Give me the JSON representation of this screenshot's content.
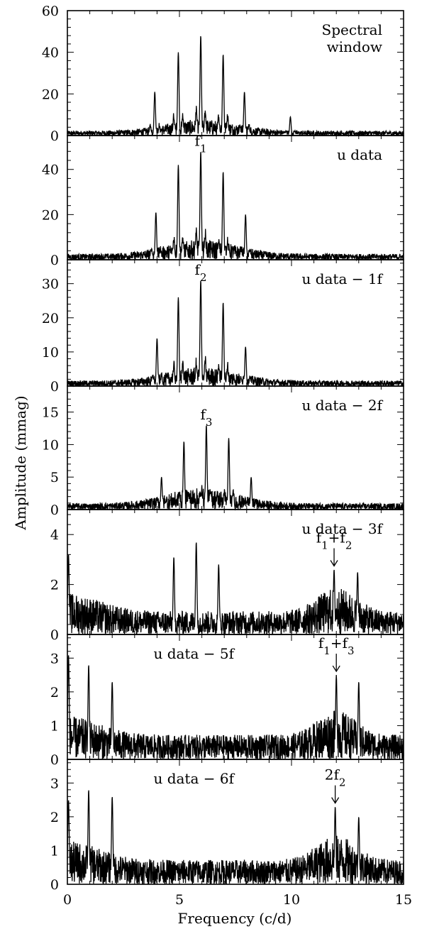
{
  "xlabel": "Frequency (c/d)",
  "ylabel": "Amplitude (mmag)",
  "colors": {
    "line": "#000000",
    "background": "#ffffff"
  },
  "chart_data": [
    {
      "type": "line",
      "panel_label": [
        "Spectral",
        "window"
      ],
      "xlim": [
        0,
        15
      ],
      "ylim": [
        0,
        60
      ],
      "yticks": [
        0,
        20,
        40,
        60
      ],
      "xticks": [
        0,
        5,
        10,
        15
      ],
      "noise": 3.5,
      "peaks": [
        {
          "x": 3.9,
          "y": 21
        },
        {
          "x": 4.95,
          "y": 40
        },
        {
          "x": 5.95,
          "y": 48
        },
        {
          "x": 6.95,
          "y": 39
        },
        {
          "x": 7.9,
          "y": 21
        },
        {
          "x": 9.95,
          "y": 9
        }
      ],
      "annotations": []
    },
    {
      "type": "line",
      "panel_label": [
        "u data"
      ],
      "xlim": [
        0,
        15
      ],
      "ylim": [
        0,
        55
      ],
      "yticks": [
        0,
        20,
        40
      ],
      "xticks": [
        0,
        5,
        10,
        15
      ],
      "noise": 4,
      "peaks": [
        {
          "x": 3.95,
          "y": 21
        },
        {
          "x": 4.95,
          "y": 42
        },
        {
          "x": 5.95,
          "y": 48
        },
        {
          "x": 6.95,
          "y": 39
        },
        {
          "x": 7.95,
          "y": 20
        }
      ],
      "annotations": [
        {
          "text": "f",
          "sub": "1",
          "x": 5.95,
          "arrow": false
        }
      ]
    },
    {
      "type": "line",
      "panel_label": [
        "u data − 1f"
      ],
      "xlim": [
        0,
        15
      ],
      "ylim": [
        0,
        37
      ],
      "yticks": [
        0,
        10,
        20,
        30
      ],
      "xticks": [
        0,
        5,
        10,
        15
      ],
      "noise": 2.5,
      "peaks": [
        {
          "x": 4.0,
          "y": 14
        },
        {
          "x": 4.95,
          "y": 26
        },
        {
          "x": 5.95,
          "y": 31
        },
        {
          "x": 6.95,
          "y": 24.5
        },
        {
          "x": 7.95,
          "y": 11.5
        }
      ],
      "annotations": [
        {
          "text": "f",
          "sub": "2",
          "x": 5.95,
          "arrow": false
        }
      ]
    },
    {
      "type": "line",
      "panel_label": [
        "u data − 2f"
      ],
      "xlim": [
        0,
        15
      ],
      "ylim": [
        0,
        19
      ],
      "yticks": [
        0,
        5,
        10,
        15
      ],
      "xticks": [
        0,
        5,
        10,
        15
      ],
      "noise": 1.5,
      "peaks": [
        {
          "x": 5.2,
          "y": 10.5
        },
        {
          "x": 6.2,
          "y": 13
        },
        {
          "x": 7.2,
          "y": 11
        },
        {
          "x": 4.2,
          "y": 5
        },
        {
          "x": 8.2,
          "y": 5
        }
      ],
      "annotations": [
        {
          "text": "f",
          "sub": "3",
          "x": 6.2,
          "arrow": false
        }
      ]
    },
    {
      "type": "line",
      "panel_label": [
        "u data − 3f"
      ],
      "xlim": [
        0,
        15
      ],
      "ylim": [
        0,
        5
      ],
      "yticks": [
        0,
        2,
        4
      ],
      "xticks": [
        0,
        5,
        10,
        15
      ],
      "noise": 0.9,
      "peaks": [
        {
          "x": 0.05,
          "y": 3.2
        },
        {
          "x": 4.75,
          "y": 3.1
        },
        {
          "x": 5.75,
          "y": 3.7
        },
        {
          "x": 6.75,
          "y": 2.8
        },
        {
          "x": 11.9,
          "y": 2.6
        },
        {
          "x": 12.95,
          "y": 2.5
        }
      ],
      "annotations": [
        {
          "text": "f",
          "sub": "1",
          "text2": "+f",
          "sub2": "2",
          "x": 11.9,
          "arrow": true
        }
      ]
    },
    {
      "type": "line",
      "panel_label": [
        "u data − 5f"
      ],
      "xlim": [
        0,
        15
      ],
      "ylim": [
        0,
        3.7
      ],
      "yticks": [
        0,
        1,
        2,
        3
      ],
      "xticks": [
        0,
        5,
        10,
        15
      ],
      "noise": 0.7,
      "peaks": [
        {
          "x": 0.05,
          "y": 3.1
        },
        {
          "x": 0.95,
          "y": 2.8
        },
        {
          "x": 2.0,
          "y": 2.3
        },
        {
          "x": 12.0,
          "y": 2.5
        },
        {
          "x": 13.0,
          "y": 2.3
        }
      ],
      "annotations": [
        {
          "text": "f",
          "sub": "1",
          "text2": "+f",
          "sub2": "3",
          "x": 12.0,
          "arrow": true
        }
      ]
    },
    {
      "type": "line",
      "panel_label": [
        "u data − 6f"
      ],
      "xlim": [
        0,
        15
      ],
      "ylim": [
        0,
        3.7
      ],
      "yticks": [
        0,
        1,
        2,
        3
      ],
      "xticks": [
        0,
        5,
        10,
        15
      ],
      "noise": 0.7,
      "peaks": [
        {
          "x": 0.05,
          "y": 2.5
        },
        {
          "x": 0.95,
          "y": 2.8
        },
        {
          "x": 2.0,
          "y": 2.6
        },
        {
          "x": 11.95,
          "y": 2.3
        },
        {
          "x": 13.0,
          "y": 2.0
        }
      ],
      "annotations": [
        {
          "text": "2f",
          "sub": "2",
          "x": 11.95,
          "arrow": true
        }
      ]
    }
  ]
}
